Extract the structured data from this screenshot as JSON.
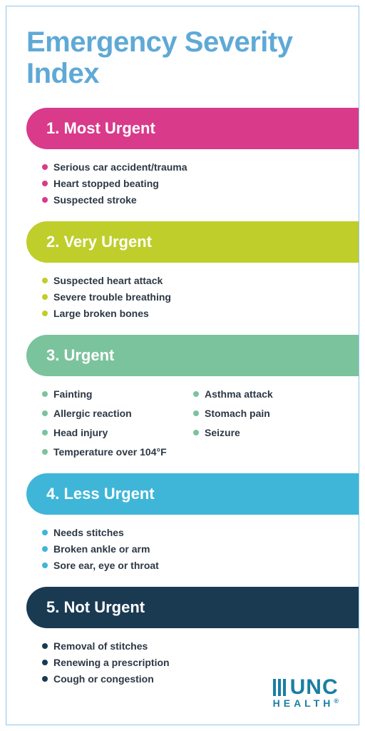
{
  "title": "Emergency Severity Index",
  "colors": {
    "border": "#8fc7e8",
    "title": "#5fa9d6",
    "item_text": "#2c3845",
    "logo": "#1a7ea3"
  },
  "sections": [
    {
      "label": "1. Most Urgent",
      "pill_color": "#d93a8a",
      "bullet_color": "#d93a8a",
      "layout": "single",
      "items": [
        "Serious car accident/trauma",
        "Heart stopped beating",
        "Suspected stroke"
      ]
    },
    {
      "label": "2. Very Urgent",
      "pill_color": "#bfce2a",
      "bullet_color": "#bfce2a",
      "layout": "single",
      "items": [
        "Suspected heart attack",
        "Severe trouble breathing",
        "Large broken bones"
      ]
    },
    {
      "label": "3. Urgent",
      "pill_color": "#7bc39d",
      "bullet_color": "#7bc39d",
      "layout": "two-col",
      "items_col1": [
        "Fainting",
        "Allergic reaction",
        "Head injury"
      ],
      "items_col2": [
        "Asthma attack",
        "Stomach pain",
        "Seizure"
      ],
      "items_full": [
        "Temperature over 104°F"
      ]
    },
    {
      "label": "4. Less Urgent",
      "pill_color": "#3fb6d8",
      "bullet_color": "#3fb6d8",
      "layout": "single",
      "items": [
        "Needs stitches",
        "Broken ankle or arm",
        "Sore ear, eye or throat"
      ]
    },
    {
      "label": "5. Not Urgent",
      "pill_color": "#1a3a52",
      "bullet_color": "#1a3a52",
      "layout": "single",
      "items": [
        "Removal of stitches",
        "Renewing a prescription",
        "Cough or congestion"
      ]
    }
  ],
  "logo": {
    "top": "UNC",
    "bottom": "HEALTH",
    "reg": "®"
  }
}
